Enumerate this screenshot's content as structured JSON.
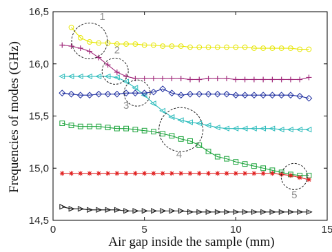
{
  "chart_data": {
    "type": "line",
    "xlabel": "Air gap inside the sample (mm)",
    "ylabel": "Frequencies of modes (GHz)",
    "xlim": [
      0,
      15
    ],
    "ylim": [
      14.5,
      16.5
    ],
    "xticks": [
      0,
      5,
      10,
      15
    ],
    "xtick_labels": [
      "0",
      "5",
      "10",
      "15"
    ],
    "yticks": [
      14.5,
      15.0,
      15.5,
      16.0,
      16.5
    ],
    "ytick_labels": [
      "14,5",
      "15,0",
      "15,5",
      "16,0",
      "16,5"
    ],
    "grid": false,
    "series": [
      {
        "marker": "circle",
        "color": "#e6e600",
        "x": [
          1.0,
          1.5,
          2.0,
          2.5,
          3.0,
          3.5,
          4.0,
          4.5,
          5.0,
          5.5,
          6.0,
          6.5,
          7.0,
          7.5,
          8.0,
          8.5,
          9.0,
          9.5,
          10.0,
          10.5,
          11.0,
          11.5,
          12.0,
          12.5,
          13.0,
          13.5,
          14.0
        ],
        "y": [
          16.35,
          16.25,
          16.21,
          16.2,
          16.2,
          16.19,
          16.19,
          16.19,
          16.18,
          16.18,
          16.17,
          16.17,
          16.17,
          16.16,
          16.16,
          16.16,
          16.16,
          16.16,
          16.16,
          16.16,
          16.15,
          16.15,
          16.15,
          16.15,
          16.15,
          16.14,
          16.14
        ]
      },
      {
        "marker": "plus",
        "color": "#a0287a",
        "x": [
          0.5,
          1.0,
          1.5,
          2.0,
          2.5,
          3.0,
          3.5,
          4.0,
          4.5,
          5.0,
          5.5,
          6.0,
          6.5,
          7.0,
          7.5,
          8.0,
          8.5,
          9.0,
          9.5,
          10.0,
          10.5,
          11.0,
          11.5,
          12.0,
          12.5,
          13.0,
          13.5,
          14.0
        ],
        "y": [
          16.18,
          16.17,
          16.15,
          16.12,
          16.06,
          15.99,
          15.92,
          15.88,
          15.86,
          15.86,
          15.86,
          15.86,
          15.86,
          15.86,
          15.85,
          15.85,
          15.86,
          15.86,
          15.86,
          15.85,
          15.85,
          15.85,
          15.85,
          15.85,
          15.85,
          15.85,
          15.85,
          15.87
        ]
      },
      {
        "marker": "triangle-left",
        "color": "#2cbcbc",
        "x": [
          0.5,
          1.0,
          1.5,
          2.0,
          2.5,
          3.0,
          3.5,
          4.0,
          4.5,
          5.0,
          5.5,
          6.0,
          6.5,
          7.0,
          7.5,
          8.0,
          8.5,
          9.0,
          9.5,
          10.0,
          10.5,
          11.0,
          11.5,
          12.0,
          12.5,
          13.0,
          13.5,
          14.0
        ],
        "y": [
          15.88,
          15.88,
          15.88,
          15.88,
          15.88,
          15.88,
          15.87,
          15.83,
          15.77,
          15.7,
          15.62,
          15.55,
          15.49,
          15.46,
          15.44,
          15.43,
          15.41,
          15.39,
          15.38,
          15.38,
          15.38,
          15.38,
          15.38,
          15.38,
          15.37,
          15.37,
          15.37,
          15.37
        ]
      },
      {
        "marker": "diamond",
        "color": "#1f2fa0",
        "x": [
          0.5,
          1.0,
          1.5,
          2.0,
          2.5,
          3.0,
          3.5,
          4.0,
          4.5,
          5.0,
          5.5,
          6.0,
          6.5,
          7.0,
          7.5,
          8.0,
          8.5,
          9.0,
          9.5,
          10.0,
          10.5,
          11.0,
          11.5,
          12.0,
          12.5,
          13.0,
          13.5,
          14.0
        ],
        "y": [
          15.72,
          15.71,
          15.7,
          15.7,
          15.71,
          15.71,
          15.71,
          15.72,
          15.72,
          15.72,
          15.73,
          15.76,
          15.72,
          15.7,
          15.71,
          15.71,
          15.71,
          15.71,
          15.71,
          15.7,
          15.7,
          15.7,
          15.7,
          15.7,
          15.7,
          15.7,
          15.69,
          15.67
        ]
      },
      {
        "marker": "square",
        "color": "#1aa33a",
        "x": [
          0.5,
          1.0,
          1.5,
          2.0,
          2.5,
          3.0,
          3.5,
          4.0,
          4.5,
          5.0,
          5.5,
          6.0,
          6.5,
          7.0,
          7.5,
          8.0,
          8.5,
          9.0,
          9.5,
          10.0,
          10.5,
          11.0,
          11.5,
          12.0,
          12.5,
          13.0,
          13.5,
          14.0
        ],
        "y": [
          15.43,
          15.41,
          15.4,
          15.4,
          15.4,
          15.39,
          15.38,
          15.38,
          15.37,
          15.36,
          15.35,
          15.33,
          15.31,
          15.28,
          15.26,
          15.22,
          15.16,
          15.11,
          15.09,
          15.06,
          15.04,
          15.02,
          15.0,
          14.98,
          14.96,
          14.94,
          14.93,
          14.93
        ]
      },
      {
        "marker": "asterisk",
        "color": "#e02020",
        "x": [
          0.5,
          1.0,
          1.5,
          2.0,
          2.5,
          3.0,
          3.5,
          4.0,
          4.5,
          5.0,
          5.5,
          6.0,
          6.5,
          7.0,
          7.5,
          8.0,
          8.5,
          9.0,
          9.5,
          10.0,
          10.5,
          11.0,
          11.5,
          12.0,
          12.5,
          13.0,
          13.5,
          14.0
        ],
        "y": [
          14.95,
          14.95,
          14.95,
          14.95,
          14.95,
          14.95,
          14.95,
          14.95,
          14.95,
          14.95,
          14.95,
          14.95,
          14.95,
          14.95,
          14.95,
          14.95,
          14.95,
          14.95,
          14.95,
          14.95,
          14.95,
          14.95,
          14.95,
          14.95,
          14.94,
          14.93,
          14.91,
          14.89
        ]
      },
      {
        "marker": "triangle-right",
        "color": "#111111",
        "x": [
          0.5,
          1.0,
          1.5,
          2.0,
          2.5,
          3.0,
          3.5,
          4.0,
          4.5,
          5.0,
          5.5,
          6.0,
          6.5,
          7.0,
          7.5,
          8.0,
          8.5,
          9.0,
          9.5,
          10.0,
          10.5,
          11.0,
          11.5,
          12.0,
          12.5,
          13.0,
          13.5,
          14.0
        ],
        "y": [
          14.63,
          14.61,
          14.61,
          14.6,
          14.6,
          14.6,
          14.6,
          14.59,
          14.59,
          14.59,
          14.59,
          14.59,
          14.59,
          14.59,
          14.58,
          14.58,
          14.58,
          14.58,
          14.58,
          14.58,
          14.58,
          14.58,
          14.58,
          14.58,
          14.58,
          14.58,
          14.58,
          14.58
        ]
      }
    ],
    "annotations": [
      {
        "label": "1",
        "cx": 2.0,
        "cy": 16.22,
        "label_x": 2.7,
        "label_y": 16.42
      },
      {
        "label": "2",
        "cx": 3.4,
        "cy": 15.93,
        "label_x": 3.5,
        "label_y": 16.1
      },
      {
        "label": "3",
        "cx": 4.6,
        "cy": 15.72,
        "label_x": 4.0,
        "label_y": 15.57
      },
      {
        "label": "4",
        "cx": 7.0,
        "cy": 15.37,
        "label_x": 6.9,
        "label_y": 15.1
      },
      {
        "label": "5",
        "cx": 13.2,
        "cy": 14.92,
        "label_x": 13.2,
        "label_y": 14.71
      }
    ]
  }
}
